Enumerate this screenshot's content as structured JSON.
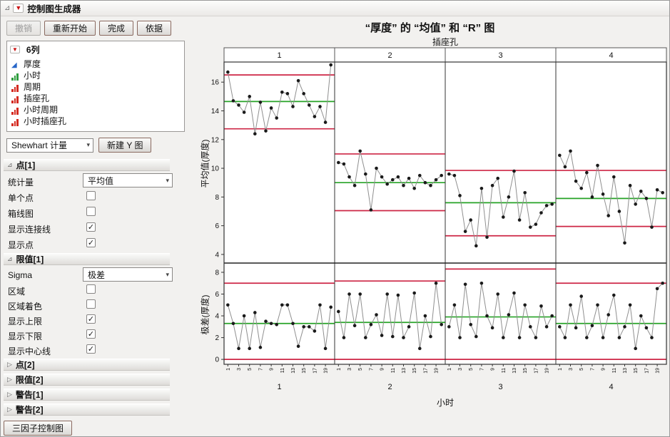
{
  "window": {
    "title": "控制图生成器"
  },
  "toolbar": {
    "undo": "撤销",
    "restart": "重新开始",
    "done": "完成",
    "by": "依据"
  },
  "columns_panel": {
    "header": "6列",
    "items": [
      {
        "label": "厚度",
        "icon": "continuous"
      },
      {
        "label": "小时",
        "icon": "ordinal"
      },
      {
        "label": "周期",
        "icon": "nominal"
      },
      {
        "label": "插座孔",
        "icon": "nominal"
      },
      {
        "label": "小时周期",
        "icon": "nominal"
      },
      {
        "label": "小时插座孔",
        "icon": "nominal"
      }
    ]
  },
  "chart_type": {
    "selected": "Shewhart 计量",
    "new_y_button": "新建 Y 图"
  },
  "sections": {
    "points1": {
      "title": "点[1]",
      "statistic_label": "统计量",
      "statistic_value": "平均值",
      "checkboxes": [
        {
          "label": "单个点",
          "checked": false
        },
        {
          "label": "箱线图",
          "checked": false
        },
        {
          "label": "显示连接线",
          "checked": true
        },
        {
          "label": "显示点",
          "checked": true
        }
      ]
    },
    "limits1": {
      "title": "限值[1]",
      "sigma_label": "Sigma",
      "sigma_value": "极差",
      "checkboxes": [
        {
          "label": "区域",
          "checked": false
        },
        {
          "label": "区域着色",
          "checked": false
        },
        {
          "label": "显示上限",
          "checked": true
        },
        {
          "label": "显示下限",
          "checked": true
        },
        {
          "label": "显示中心线",
          "checked": true
        }
      ]
    },
    "collapsed": [
      "点[2]",
      "限值[2]",
      "警告[1]",
      "警告[2]"
    ]
  },
  "footer": {
    "three_factor_button": "三因子控制图"
  },
  "chart_data": {
    "type": "line",
    "title": "“厚度” 的 “均值” 和 “R” 图",
    "col_group_label": "插座孔",
    "xlabel": "小时",
    "panels": [
      "1",
      "2",
      "3",
      "4"
    ],
    "x_ticks": [
      1,
      3,
      5,
      7,
      9,
      11,
      13,
      15,
      17,
      19
    ],
    "x_range": [
      0.3,
      20.7
    ],
    "legend": "none",
    "grid": false,
    "colors": {
      "limit": "#cd2645",
      "center": "#27a327",
      "point": "#1a1a1a",
      "line": "#8f8f8f"
    },
    "mean_chart": {
      "ylabel": "平均值(厚度)",
      "ylim": [
        3.4,
        17.4
      ],
      "yticks": [
        4,
        6,
        8,
        10,
        12,
        14,
        16
      ],
      "panels": [
        {
          "ucl": 16.5,
          "cl": 14.65,
          "lcl": 12.75,
          "values": [
            16.7,
            14.7,
            14.4,
            13.9,
            15.0,
            12.4,
            14.6,
            12.6,
            14.2,
            13.5,
            15.3,
            15.2,
            14.3,
            16.1,
            15.2,
            14.4,
            13.6,
            14.3,
            13.2,
            17.2
          ]
        },
        {
          "ucl": 11.0,
          "cl": 9.0,
          "lcl": 7.05,
          "values": [
            10.4,
            10.3,
            9.4,
            8.8,
            11.2,
            9.6,
            7.1,
            10.0,
            9.4,
            8.9,
            9.2,
            9.4,
            8.8,
            9.3,
            8.6,
            9.5,
            9.0,
            8.8,
            9.2,
            9.5
          ]
        },
        {
          "ucl": 9.85,
          "cl": 7.6,
          "lcl": 5.3,
          "values": [
            9.6,
            9.5,
            8.1,
            5.6,
            6.4,
            4.6,
            8.6,
            5.2,
            8.8,
            9.3,
            6.6,
            8.0,
            9.8,
            6.4,
            8.3,
            5.9,
            6.1,
            6.9,
            7.4,
            7.5
          ]
        },
        {
          "ucl": 9.85,
          "cl": 7.9,
          "lcl": 5.95,
          "values": [
            10.9,
            10.1,
            11.2,
            9.1,
            8.6,
            9.7,
            8.0,
            10.2,
            8.2,
            6.7,
            9.4,
            7.0,
            4.8,
            8.8,
            7.5,
            8.4,
            7.9,
            5.9,
            8.5,
            8.3
          ]
        }
      ]
    },
    "range_chart": {
      "ylabel": "极差(厚度)",
      "ylim": [
        -0.45,
        8.85
      ],
      "yticks": [
        0,
        2,
        4,
        6,
        8
      ],
      "panels": [
        {
          "ucl": 7.0,
          "cl": 3.3,
          "lcl": 0,
          "values": [
            5.0,
            3.3,
            1.0,
            4.0,
            1.0,
            4.3,
            1.1,
            3.5,
            3.3,
            3.2,
            5.0,
            5.0,
            3.3,
            1.2,
            3.0,
            3.0,
            2.6,
            5.0,
            1.0,
            4.8
          ]
        },
        {
          "ucl": 7.2,
          "cl": 3.4,
          "lcl": 0,
          "values": [
            4.4,
            2.0,
            6.0,
            3.1,
            6.0,
            2.0,
            3.2,
            4.1,
            2.2,
            6.0,
            2.1,
            5.9,
            2.0,
            3.0,
            6.1,
            1.0,
            4.0,
            2.1,
            7.0,
            3.2
          ]
        },
        {
          "ucl": 8.3,
          "cl": 3.9,
          "lcl": 0,
          "values": [
            3.0,
            5.0,
            2.0,
            6.9,
            3.2,
            2.1,
            7.0,
            4.0,
            2.9,
            6.0,
            2.0,
            4.1,
            6.1,
            2.0,
            5.0,
            3.0,
            2.0,
            4.9,
            3.0,
            4.0
          ]
        },
        {
          "ucl": 7.0,
          "cl": 3.3,
          "lcl": 0,
          "values": [
            3.0,
            2.0,
            5.0,
            2.9,
            5.8,
            2.0,
            3.1,
            5.0,
            2.0,
            4.1,
            5.9,
            2.0,
            3.0,
            5.0,
            1.0,
            4.0,
            2.9,
            2.0,
            6.5,
            7.0
          ]
        }
      ]
    }
  }
}
